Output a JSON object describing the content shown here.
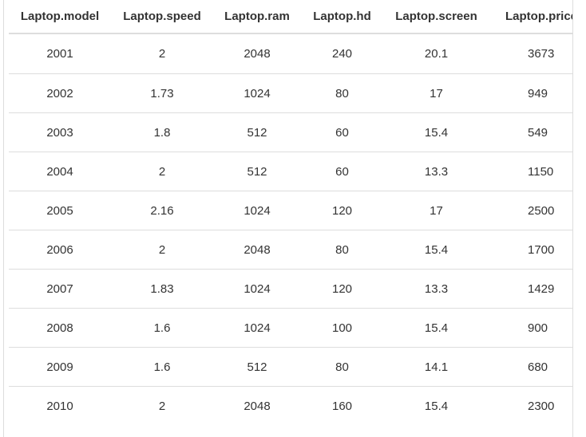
{
  "table": {
    "columns": [
      "Laptop.model",
      "Laptop.speed",
      "Laptop.ram",
      "Laptop.hd",
      "Laptop.screen",
      "Laptop.price"
    ],
    "rows": [
      [
        "2001",
        "2",
        "2048",
        "240",
        "20.1",
        "3673"
      ],
      [
        "2002",
        "1.73",
        "1024",
        "80",
        "17",
        "949"
      ],
      [
        "2003",
        "1.8",
        "512",
        "60",
        "15.4",
        "549"
      ],
      [
        "2004",
        "2",
        "512",
        "60",
        "13.3",
        "1150"
      ],
      [
        "2005",
        "2.16",
        "1024",
        "120",
        "17",
        "2500"
      ],
      [
        "2006",
        "2",
        "2048",
        "80",
        "15.4",
        "1700"
      ],
      [
        "2007",
        "1.83",
        "1024",
        "120",
        "13.3",
        "1429"
      ],
      [
        "2008",
        "1.6",
        "1024",
        "100",
        "15.4",
        "900"
      ],
      [
        "2009",
        "1.6",
        "512",
        "80",
        "14.1",
        "680"
      ],
      [
        "2010",
        "2",
        "2048",
        "160",
        "15.4",
        "2300"
      ]
    ]
  }
}
